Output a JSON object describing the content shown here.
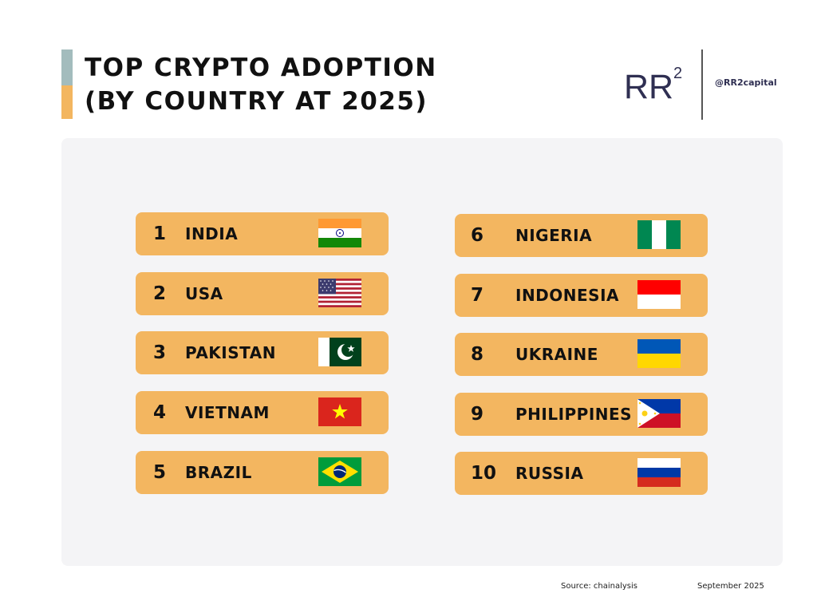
{
  "header": {
    "title_line1": "TOP CRYPTO ADOPTION",
    "title_line2": "(BY COUNTRY AT 2025)",
    "logo_text": "RR",
    "logo_superscript": "2",
    "handle": "@RR2capital"
  },
  "rankings": [
    {
      "rank": "1",
      "country": "INDIA",
      "flag_icon": "india-flag-icon"
    },
    {
      "rank": "2",
      "country": "USA",
      "flag_icon": "usa-flag-icon"
    },
    {
      "rank": "3",
      "country": "PAKISTAN",
      "flag_icon": "pakistan-flag-icon"
    },
    {
      "rank": "4",
      "country": "VIETNAM",
      "flag_icon": "vietnam-flag-icon"
    },
    {
      "rank": "5",
      "country": "BRAZIL",
      "flag_icon": "brazil-flag-icon"
    },
    {
      "rank": "6",
      "country": "NIGERIA",
      "flag_icon": "nigeria-flag-icon"
    },
    {
      "rank": "7",
      "country": "INDONESIA",
      "flag_icon": "indonesia-flag-icon"
    },
    {
      "rank": "8",
      "country": "UKRAINE",
      "flag_icon": "ukraine-flag-icon"
    },
    {
      "rank": "9",
      "country": "PHILIPPINES",
      "flag_icon": "philippines-flag-icon"
    },
    {
      "rank": "10",
      "country": "RUSSIA",
      "flag_icon": "russia-flag-icon"
    }
  ],
  "footer": {
    "source": "Source: chainalysis",
    "date": "September 2025"
  },
  "colors": {
    "row_background": "#f3b660",
    "panel_background": "#f4f4f6",
    "accent_top": "#a3bcbd",
    "accent_bottom": "#f3b660",
    "logo_color": "#2f2f52"
  }
}
